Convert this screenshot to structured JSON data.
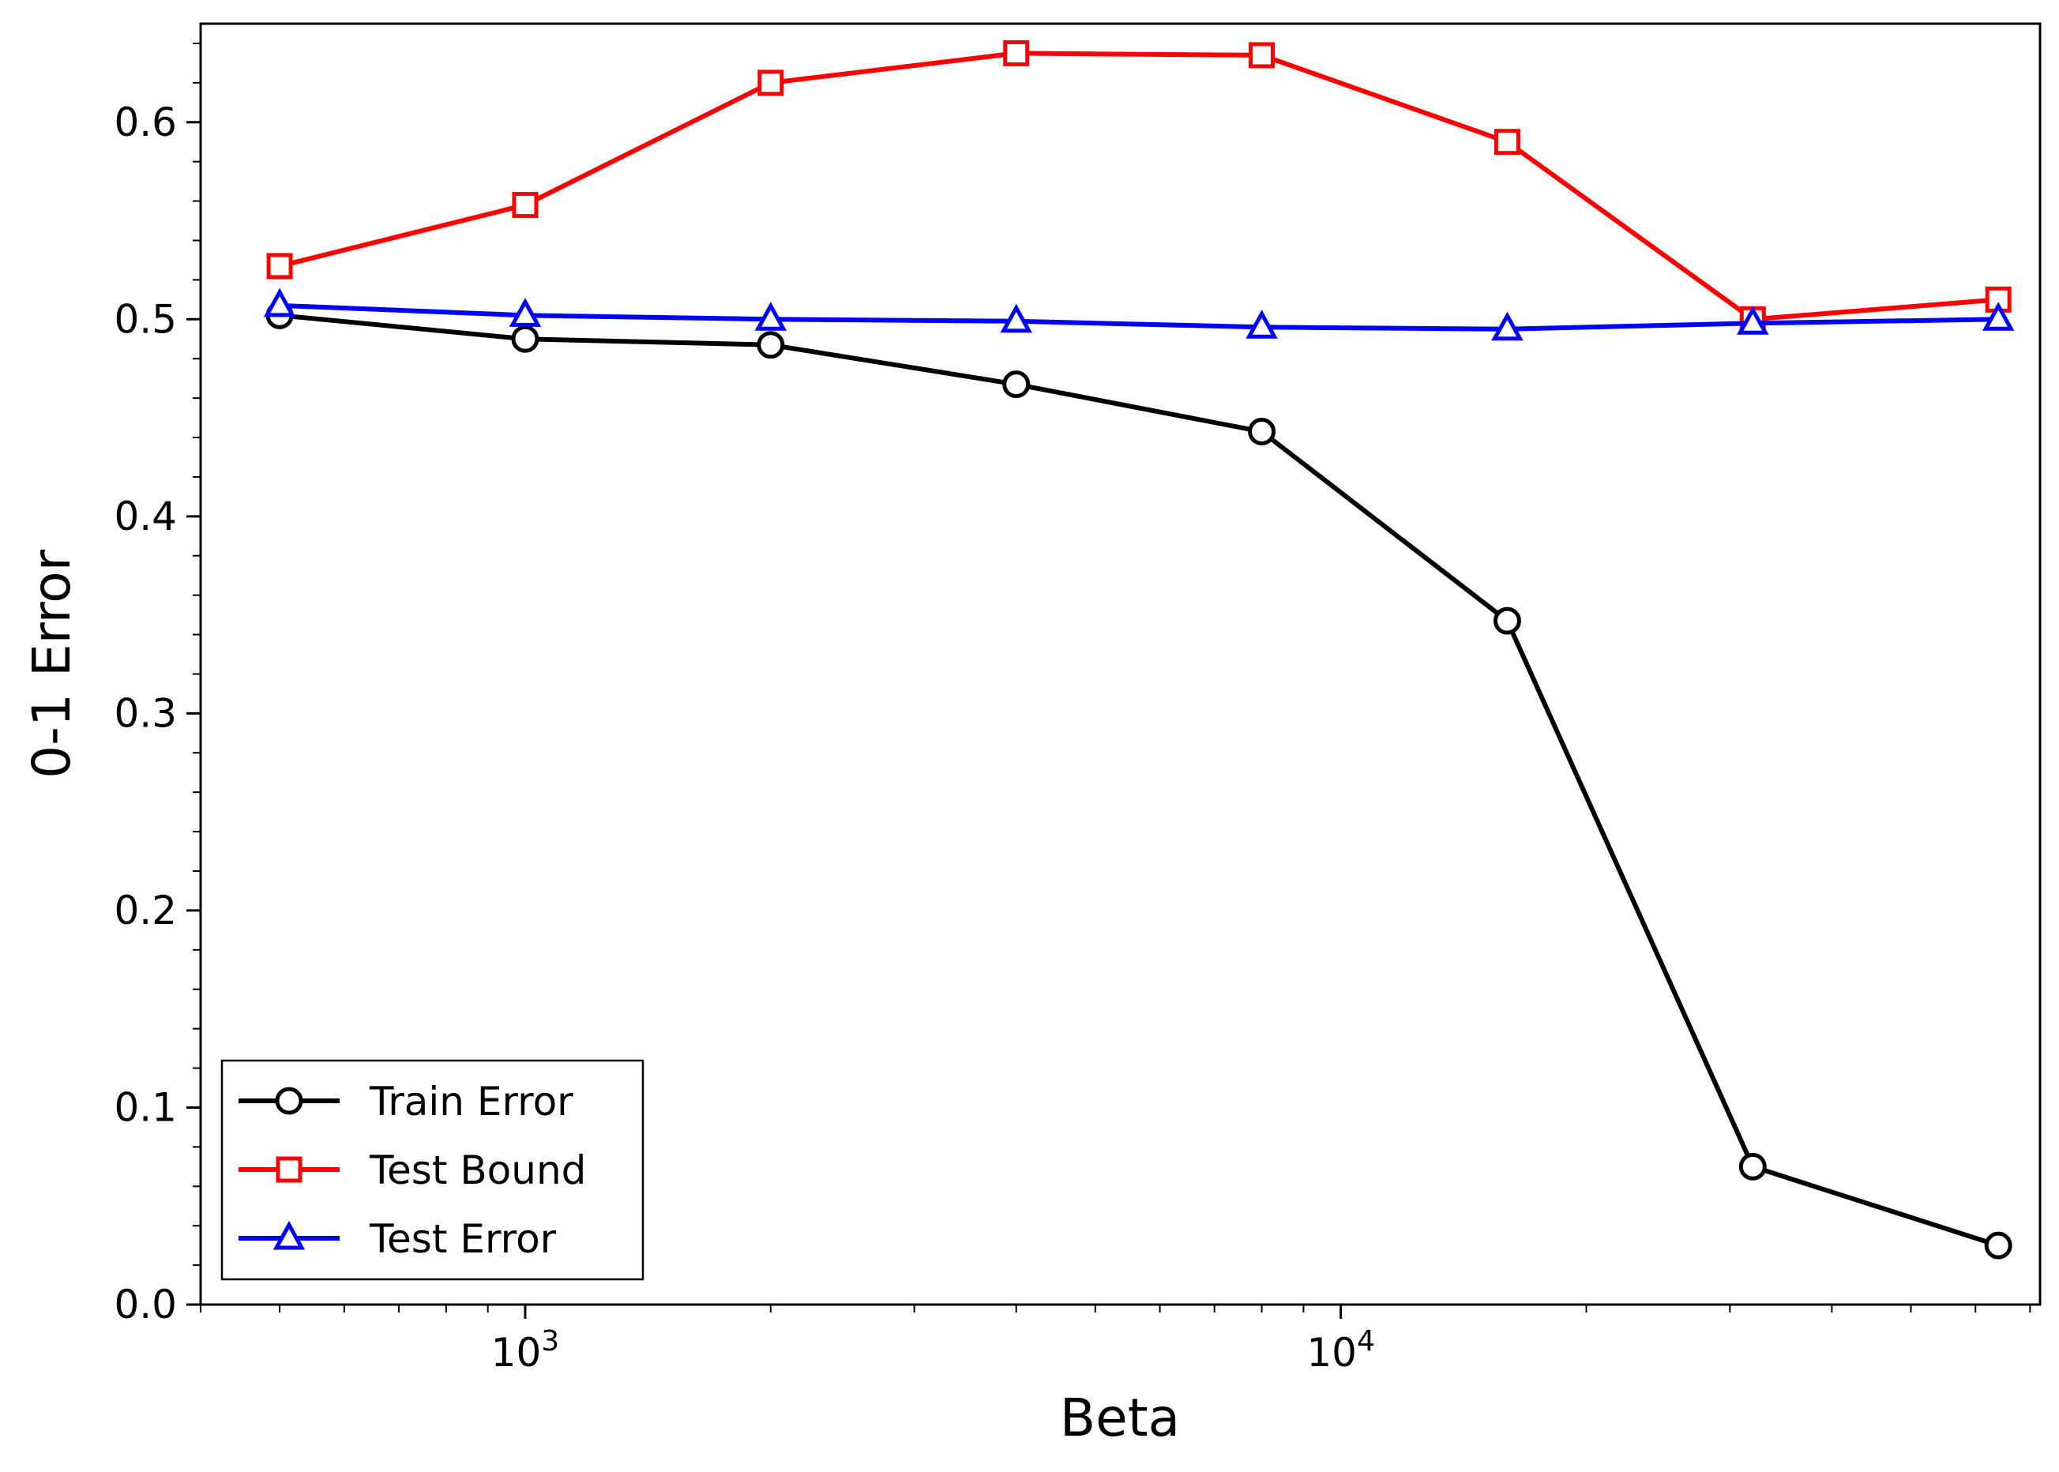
{
  "chart_data": {
    "type": "line",
    "xlabel": "Beta",
    "ylabel": "0-1 Error",
    "xscale": "log",
    "xlim": [
      400,
      72000
    ],
    "ylim": [
      0.0,
      0.65
    ],
    "x": [
      500,
      1000,
      2000,
      4000,
      8000,
      16000,
      32000,
      64000
    ],
    "x_ticks": [
      {
        "value": 1000,
        "base": "10",
        "exp": "3"
      },
      {
        "value": 10000,
        "base": "10",
        "exp": "4"
      }
    ],
    "y_ticks": [
      {
        "value": 0.0,
        "label": "0.0"
      },
      {
        "value": 0.1,
        "label": "0.1"
      },
      {
        "value": 0.2,
        "label": "0.2"
      },
      {
        "value": 0.3,
        "label": "0.3"
      },
      {
        "value": 0.4,
        "label": "0.4"
      },
      {
        "value": 0.5,
        "label": "0.5"
      },
      {
        "value": 0.6,
        "label": "0.6"
      }
    ],
    "series": [
      {
        "name": "Train Error",
        "color": "#000000",
        "marker": "circle",
        "values": [
          0.502,
          0.49,
          0.487,
          0.467,
          0.443,
          0.347,
          0.07,
          0.03
        ]
      },
      {
        "name": "Test Bound",
        "color": "#ff0000",
        "marker": "square",
        "values": [
          0.527,
          0.558,
          0.62,
          0.635,
          0.634,
          0.59,
          0.5,
          0.51
        ]
      },
      {
        "name": "Test Error",
        "color": "#0000ff",
        "marker": "triangle",
        "values": [
          0.507,
          0.502,
          0.5,
          0.499,
          0.496,
          0.495,
          0.498,
          0.5
        ]
      }
    ],
    "grid": false,
    "legend_position": "lower-left"
  }
}
